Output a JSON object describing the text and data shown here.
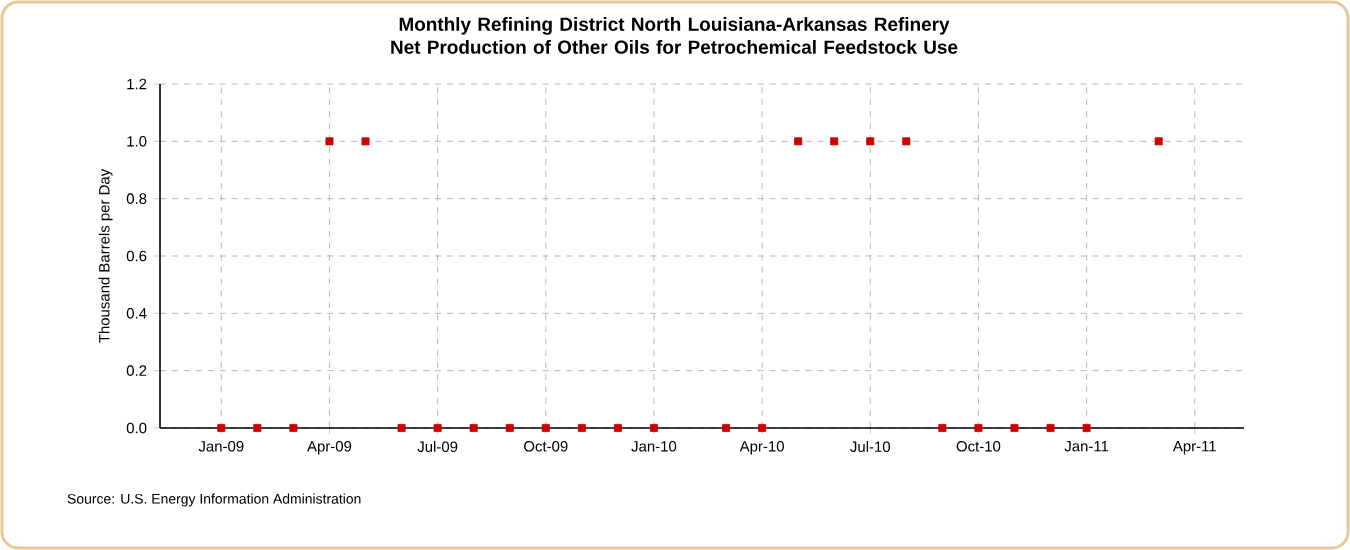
{
  "chart_data": {
    "type": "scatter",
    "title": "Monthly Refining District North Louisiana-Arkansas Refinery Net Production of Other Oils for Petrochemical Feedstock Use",
    "ylabel": "Thousand Barrels per Day",
    "x": [
      "2009-01",
      "2009-02",
      "2009-03",
      "2009-04",
      "2009-05",
      "2009-06",
      "2009-07",
      "2009-08",
      "2009-09",
      "2009-10",
      "2009-11",
      "2009-12",
      "2010-01",
      "2010-02",
      "2010-03",
      "2010-04",
      "2010-05",
      "2010-06",
      "2010-07",
      "2010-08",
      "2010-09",
      "2010-10",
      "2010-11",
      "2010-12",
      "2011-01",
      "2011-02",
      "2011-03"
    ],
    "values": [
      0,
      0,
      0,
      1,
      1,
      0,
      0,
      0,
      0,
      0,
      0,
      0,
      0,
      null,
      0,
      0,
      1,
      1,
      1,
      1,
      0,
      0,
      0,
      0,
      0,
      null,
      1
    ],
    "color": "#cc0000",
    "marker": "square",
    "grid": true,
    "xlim": [
      "2008-11-10",
      "2011-05-12"
    ],
    "xticks": [
      {
        "value": "2009-01",
        "label": "Jan-09"
      },
      {
        "value": "2009-04",
        "label": "Apr-09"
      },
      {
        "value": "2009-07",
        "label": "Jul-09"
      },
      {
        "value": "2009-10",
        "label": "Oct-09"
      },
      {
        "value": "2010-01",
        "label": "Jan-10"
      },
      {
        "value": "2010-04",
        "label": "Apr-10"
      },
      {
        "value": "2010-07",
        "label": "Jul-10"
      },
      {
        "value": "2010-10",
        "label": "Oct-10"
      },
      {
        "value": "2011-01",
        "label": "Jan-11"
      },
      {
        "value": "2011-04",
        "label": "Apr-11"
      }
    ],
    "ylim": [
      0,
      1.2
    ],
    "yticks": [
      {
        "value": 0,
        "label": "0.0"
      },
      {
        "value": 0.2,
        "label": "0.2"
      },
      {
        "value": 0.4,
        "label": "0.4"
      },
      {
        "value": 0.6,
        "label": "0.6"
      },
      {
        "value": 0.8,
        "label": "0.8"
      },
      {
        "value": 1,
        "label": "1.0"
      },
      {
        "value": 1.2,
        "label": "1.2"
      }
    ],
    "annotations": [
      "Source: U.S. Energy Information Administration"
    ]
  }
}
